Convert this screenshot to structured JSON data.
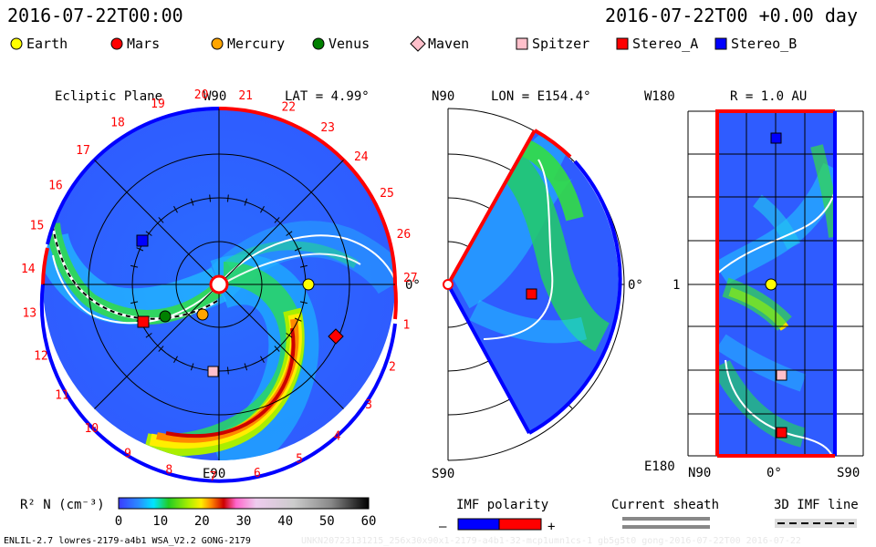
{
  "header": {
    "datetime_left": "2016-07-22T00:00",
    "datetime_right": "2016-07-22T00 +0.00 day"
  },
  "legend": {
    "items": [
      {
        "label": "Earth",
        "shape": "circle",
        "color": "#ffff00"
      },
      {
        "label": "Mars",
        "shape": "circle",
        "color": "#ff0000"
      },
      {
        "label": "Mercury",
        "shape": "circle",
        "color": "#ffa500"
      },
      {
        "label": "Venus",
        "shape": "circle",
        "color": "#008000"
      },
      {
        "label": "Maven",
        "shape": "diamond",
        "color": "#ffc0cb"
      },
      {
        "label": "Spitzer",
        "shape": "square",
        "color": "#ffc0cb"
      },
      {
        "label": "Stereo_A",
        "shape": "square",
        "color": "#ff0000"
      },
      {
        "label": "Stereo_B",
        "shape": "square",
        "color": "#0000ff"
      }
    ]
  },
  "ecliptic": {
    "title": "Ecliptic Plane",
    "top_label": "W90",
    "bottom_label": "E90",
    "right_label": "0°",
    "lat_label": "LAT = 4.99°",
    "carrington_numbers": [
      "1",
      "2",
      "3",
      "4",
      "5",
      "6",
      "7",
      "8",
      "9",
      "10",
      "11",
      "12",
      "13",
      "14",
      "15",
      "16",
      "17",
      "18",
      "19",
      "20",
      "21",
      "22",
      "23",
      "24",
      "25",
      "26",
      "27"
    ]
  },
  "meridional": {
    "top_label": "N90",
    "bottom_label": "S90",
    "right_label": "0°",
    "lon_label": "LON = E154.4°"
  },
  "sphere": {
    "top_left_label": "W180",
    "bottom_left_label": "E180",
    "mid_left_label": "1",
    "r_label": "R = 1.0 AU",
    "bottom_labels": [
      "N90",
      "0°",
      "S90"
    ]
  },
  "colorbar": {
    "label": "R² N (cm⁻³)",
    "ticks": [
      "0",
      "10",
      "20",
      "30",
      "40",
      "50",
      "60"
    ]
  },
  "imf_polarity": {
    "title": "IMF polarity",
    "minus": "–",
    "plus": "+",
    "neg_color": "#0000ff",
    "pos_color": "#ff0000"
  },
  "current_sheath": {
    "title": "Current sheath"
  },
  "imf_line": {
    "title": "3D IMF line"
  },
  "footer": {
    "model_info": "ENLIL-2.7 lowres-2179-a4b1 WSA_V2.2 GONG-2179",
    "watermark": "UNKN20723131215_256x30x90x1-2179-a4b1-32-mcp1umn1cs-1 gb5g5t0 gong-2016-07-22T00 2016-07-22"
  }
}
